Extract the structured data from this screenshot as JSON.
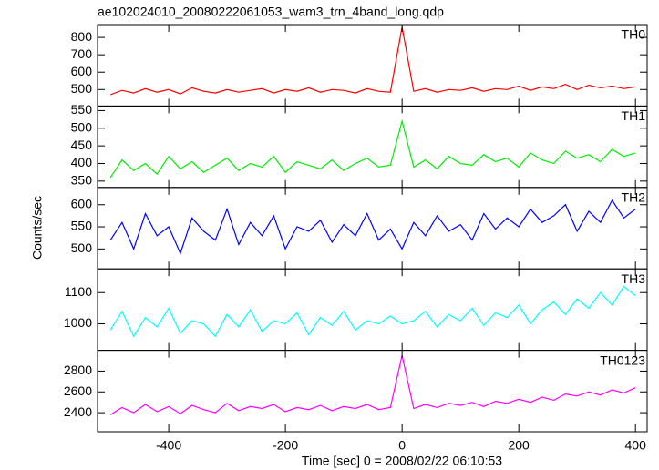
{
  "title": "ae102024010_20080222061053_wam3_trn_4band_long.qdp",
  "x_label": "Time [sec] 0 = 2008/02/22 06:10:53",
  "y_label": "Counts/sec",
  "xlim": [
    -522,
    420
  ],
  "xticks": [
    -400,
    -200,
    0,
    200,
    400
  ],
  "x": [
    -500,
    -480,
    -460,
    -440,
    -420,
    -400,
    -380,
    -360,
    -340,
    -320,
    -300,
    -280,
    -260,
    -240,
    -220,
    -200,
    -180,
    -160,
    -140,
    -120,
    -100,
    -80,
    -60,
    -40,
    -20,
    0,
    20,
    40,
    60,
    80,
    100,
    120,
    140,
    160,
    180,
    200,
    220,
    240,
    260,
    280,
    300,
    320,
    340,
    360,
    380,
    400
  ],
  "chart_data": [
    {
      "type": "line",
      "label": "TH0",
      "color": "#ff0000",
      "ylim": [
        405,
        874
      ],
      "yticks": [
        500,
        600,
        700,
        800
      ],
      "values": [
        470,
        495,
        480,
        505,
        485,
        500,
        475,
        510,
        490,
        480,
        500,
        485,
        495,
        505,
        480,
        500,
        490,
        510,
        485,
        500,
        495,
        480,
        505,
        490,
        485,
        860,
        490,
        505,
        485,
        500,
        495,
        510,
        490,
        505,
        500,
        520,
        495,
        515,
        505,
        530,
        500,
        525,
        510,
        520,
        505,
        515
      ]
    },
    {
      "type": "line",
      "label": "TH1",
      "color": "#00ee00",
      "ylim": [
        332,
        563
      ],
      "yticks": [
        350,
        400,
        450,
        500,
        550
      ],
      "values": [
        360,
        410,
        380,
        400,
        370,
        420,
        385,
        405,
        375,
        395,
        415,
        380,
        400,
        390,
        420,
        375,
        405,
        395,
        385,
        410,
        380,
        400,
        415,
        390,
        395,
        520,
        390,
        410,
        385,
        420,
        400,
        395,
        425,
        405,
        415,
        390,
        430,
        410,
        400,
        435,
        415,
        425,
        405,
        440,
        420,
        430
      ]
    },
    {
      "type": "line",
      "label": "TH2",
      "color": "#0000ff",
      "ylim": [
        455,
        639
      ],
      "yticks": [
        500,
        550,
        600
      ],
      "values": [
        520,
        560,
        500,
        580,
        530,
        550,
        490,
        570,
        540,
        520,
        590,
        510,
        560,
        530,
        575,
        500,
        550,
        540,
        565,
        515,
        555,
        530,
        580,
        520,
        545,
        500,
        560,
        530,
        575,
        540,
        555,
        520,
        580,
        545,
        570,
        550,
        590,
        560,
        575,
        600,
        540,
        585,
        560,
        610,
        570,
        590
      ]
    },
    {
      "type": "line",
      "label": "TH3",
      "color": "#00ffff",
      "ylim": [
        915,
        1176
      ],
      "yticks": [
        1000,
        1100
      ],
      "values": [
        980,
        1040,
        960,
        1020,
        990,
        1050,
        970,
        1010,
        1000,
        960,
        1030,
        990,
        1045,
        975,
        1010,
        1000,
        1035,
        965,
        1020,
        995,
        1040,
        980,
        1010,
        1000,
        1025,
        1000,
        1010,
        1040,
        990,
        1030,
        1010,
        1050,
        995,
        1035,
        1020,
        1060,
        1000,
        1045,
        1070,
        1030,
        1080,
        1050,
        1100,
        1060,
        1120,
        1090
      ]
    },
    {
      "type": "line",
      "label": "TH0123",
      "color": "#ff00ff",
      "ylim": [
        2217,
        3000
      ],
      "yticks": [
        2400,
        2600,
        2800
      ],
      "values": [
        2380,
        2450,
        2400,
        2480,
        2410,
        2460,
        2390,
        2470,
        2430,
        2400,
        2490,
        2420,
        2460,
        2440,
        2480,
        2410,
        2450,
        2430,
        2470,
        2420,
        2460,
        2440,
        2480,
        2430,
        2450,
        2950,
        2440,
        2480,
        2450,
        2490,
        2470,
        2500,
        2460,
        2510,
        2490,
        2530,
        2500,
        2550,
        2520,
        2580,
        2560,
        2600,
        2570,
        2620,
        2590,
        2640
      ]
    }
  ]
}
